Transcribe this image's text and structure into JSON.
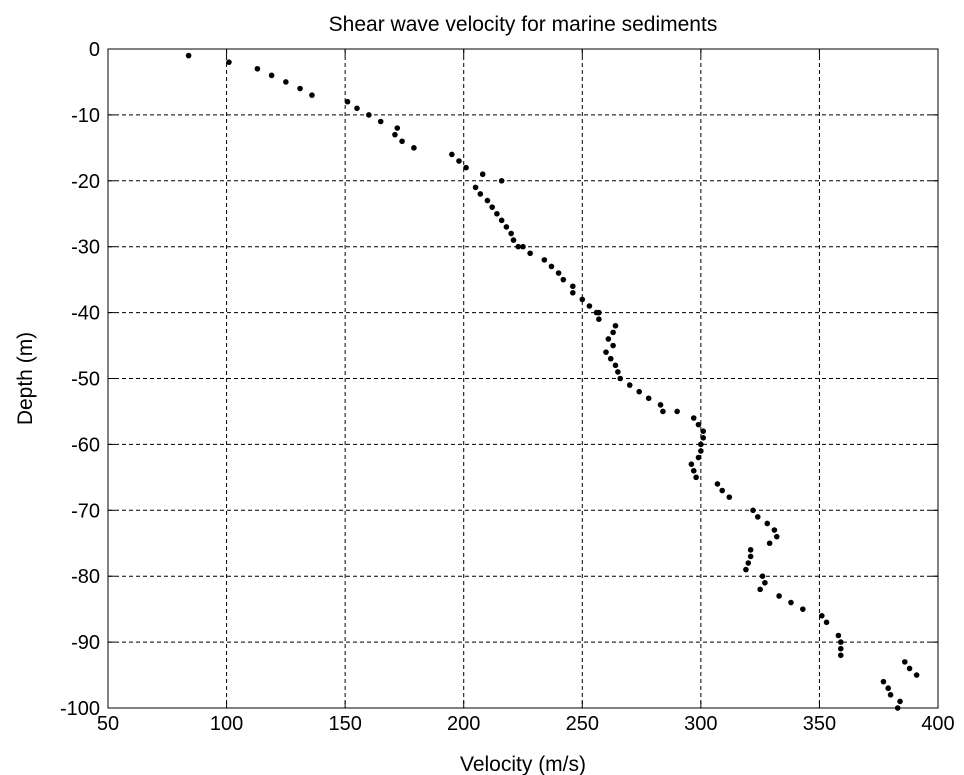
{
  "chart_data": {
    "type": "scatter",
    "title": "Shear wave velocity for marine sediments",
    "xlabel": "Velocity (m/s)",
    "ylabel": "Depth (m)",
    "xlim": [
      50,
      400
    ],
    "ylim": [
      -100,
      0
    ],
    "x_ticks": [
      "50",
      "100",
      "150",
      "200",
      "250",
      "300",
      "350",
      "400"
    ],
    "y_ticks": [
      "0",
      "-10",
      "-20",
      "-30",
      "-40",
      "-50",
      "-60",
      "-70",
      "-80",
      "-90",
      "-100"
    ],
    "grid": true,
    "grid_style": "dashed",
    "marker_color": "#000000",
    "series": [
      {
        "x": [
          84,
          101,
          113,
          119,
          125,
          131,
          136,
          151,
          155,
          160,
          165,
          172,
          171,
          174,
          179,
          195,
          198,
          201,
          216,
          208,
          205,
          207,
          210,
          212,
          214,
          216,
          218,
          220,
          221,
          223,
          225,
          228,
          234,
          237,
          240,
          242,
          246,
          246,
          250,
          253,
          256,
          257,
          257,
          264,
          263,
          261,
          263,
          260,
          262,
          264,
          265,
          266,
          270,
          274,
          278,
          283,
          284,
          290,
          297,
          299,
          301,
          301,
          300,
          300,
          299,
          296,
          297,
          298,
          307,
          309,
          312,
          322,
          324,
          328,
          331,
          332,
          329,
          321,
          321,
          320,
          319,
          326,
          327,
          325,
          333,
          338,
          343,
          351,
          353,
          358,
          359,
          359,
          359,
          386,
          388,
          391,
          377,
          379,
          380,
          384,
          383
        ],
        "y": [
          -1,
          -2,
          -3,
          -4,
          -5,
          -6,
          -7,
          -8,
          -9,
          -10,
          -11,
          -12,
          -13,
          -14,
          -15,
          -16,
          -17,
          -18,
          -20,
          -19,
          -21,
          -22,
          -23,
          -24,
          -25,
          -26,
          -27,
          -28,
          -29,
          -30,
          -30,
          -31,
          -32,
          -33,
          -34,
          -35,
          -36,
          -37,
          -38,
          -39,
          -40,
          -41,
          -40,
          -42,
          -43,
          -44,
          -45,
          -46,
          -47,
          -48,
          -49,
          -50,
          -51,
          -52,
          -53,
          -54,
          -55,
          -55,
          -56,
          -57,
          -58,
          -59,
          -60,
          -61,
          -62,
          -63,
          -64,
          -65,
          -66,
          -67,
          -68,
          -70,
          -71,
          -72,
          -73,
          -74,
          -75,
          -76,
          -77,
          -78,
          -79,
          -80,
          -81,
          -82,
          -83,
          -84,
          -85,
          -86,
          -87,
          -89,
          -90,
          -91,
          -92,
          -93,
          -94,
          -95,
          -96,
          -97,
          -98,
          -99,
          -100
        ]
      }
    ]
  }
}
